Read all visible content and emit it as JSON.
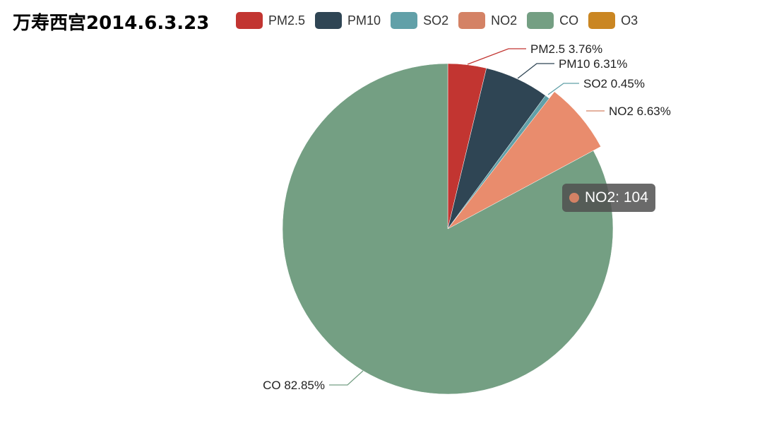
{
  "colors": {
    "PM2.5": "#c23531",
    "PM10": "#2f4554",
    "SO2": "#61a0a8",
    "NO2": "#d48265",
    "NO2_emphasis": "#e98c6d",
    "CO": "#749f83",
    "O3": "#ca8622"
  },
  "chart_data": {
    "type": "pie",
    "title": "万寿西宫2014.6.3.23",
    "legend": [
      "PM2.5",
      "PM10",
      "SO2",
      "NO2",
      "CO",
      "O3"
    ],
    "legend_position": "top",
    "slices": [
      {
        "name": "PM2.5",
        "percent": 3.76,
        "label": "PM2.5 3.76%"
      },
      {
        "name": "PM10",
        "percent": 6.31,
        "label": "PM10 6.31%"
      },
      {
        "name": "SO2",
        "percent": 0.45,
        "label": "SO2 0.45%"
      },
      {
        "name": "NO2",
        "percent": 6.63,
        "label": "NO2 6.63%",
        "value": 104,
        "highlighted": true
      },
      {
        "name": "CO",
        "percent": 82.85,
        "label": "CO 82.85%"
      },
      {
        "name": "O3",
        "percent": 0,
        "label": ""
      }
    ],
    "tooltip": {
      "series": "NO2",
      "text": "NO2: 104"
    }
  }
}
